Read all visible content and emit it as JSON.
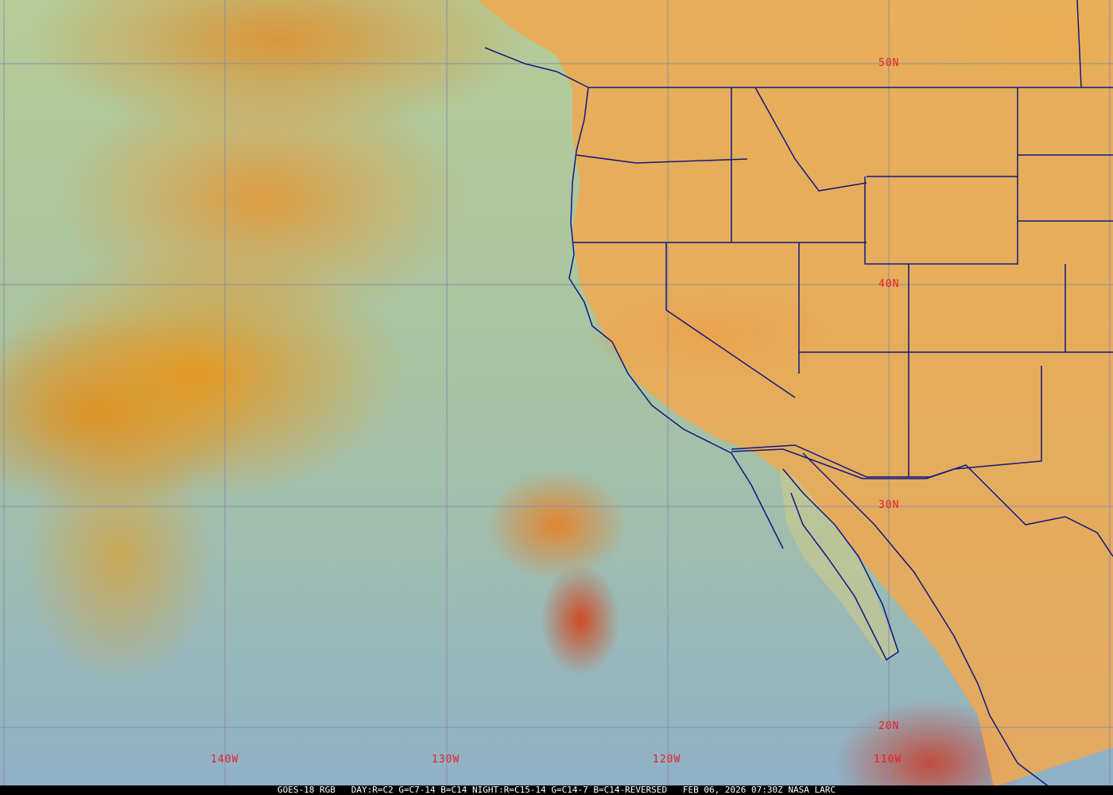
{
  "caption": "GOES-18 RGB   DAY:R=C2 G=C7-14 B=C14 NIGHT:R=C15-14 G=C14-7 B=C14-REVERSED   FEB 06, 2026 07:30Z NASA LARC",
  "grid_labels": {
    "latitudes": [
      "50N",
      "40N",
      "30N",
      "20N"
    ],
    "longitudes": [
      "140W",
      "130W",
      "120W",
      "110W"
    ]
  },
  "colors": {
    "grid": "#8a8aa8",
    "borders": "#101880",
    "labels": "#e8202a",
    "land": "#f0a850",
    "ocean": "#a8c4a2"
  }
}
